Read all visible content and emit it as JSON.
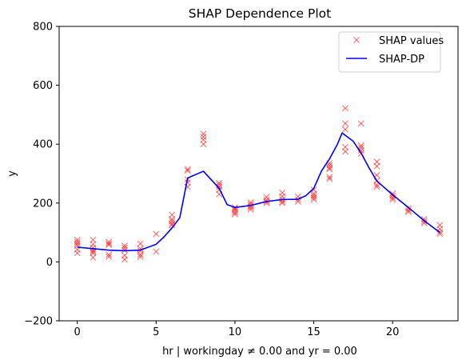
{
  "chart_data": {
    "type": "scatter",
    "title": "SHAP Dependence Plot",
    "xlabel": "hr | workingday ≠ 0.00 and yr = 0.00",
    "ylabel": "y",
    "xlim": [
      -1.15,
      24.15
    ],
    "ylim": [
      -200,
      800
    ],
    "xticks": [
      0,
      5,
      10,
      15,
      20
    ],
    "yticks": [
      -200,
      0,
      200,
      400,
      600,
      800
    ],
    "legend": {
      "placement": "top-right"
    },
    "grid": false,
    "series": [
      {
        "name": "SHAP values",
        "kind": "markers",
        "marker": "x",
        "color": "#ff0000",
        "points": [
          [
            0,
            75
          ],
          [
            0,
            68
          ],
          [
            0,
            62
          ],
          [
            0,
            55
          ],
          [
            0,
            42
          ],
          [
            0,
            30
          ],
          [
            1,
            75
          ],
          [
            1,
            60
          ],
          [
            1,
            48
          ],
          [
            1,
            40
          ],
          [
            1,
            35
          ],
          [
            1,
            30
          ],
          [
            1,
            15
          ],
          [
            2,
            68
          ],
          [
            2,
            62
          ],
          [
            2,
            58
          ],
          [
            2,
            25
          ],
          [
            2,
            18
          ],
          [
            3,
            55
          ],
          [
            3,
            48
          ],
          [
            3,
            40
          ],
          [
            3,
            22
          ],
          [
            3,
            8
          ],
          [
            4,
            62
          ],
          [
            4,
            45
          ],
          [
            4,
            38
          ],
          [
            4,
            25
          ],
          [
            4,
            18
          ],
          [
            5,
            95
          ],
          [
            5,
            35
          ],
          [
            6,
            160
          ],
          [
            6,
            145
          ],
          [
            6,
            138
          ],
          [
            6,
            130
          ],
          [
            6,
            125
          ],
          [
            7,
            315
          ],
          [
            7,
            310
          ],
          [
            7,
            280
          ],
          [
            7,
            270
          ],
          [
            7,
            255
          ],
          [
            8,
            435
          ],
          [
            8,
            425
          ],
          [
            8,
            415
          ],
          [
            8,
            400
          ],
          [
            9,
            268
          ],
          [
            9,
            262
          ],
          [
            9,
            255
          ],
          [
            9,
            245
          ],
          [
            9,
            230
          ],
          [
            10,
            185
          ],
          [
            10,
            180
          ],
          [
            10,
            175
          ],
          [
            10,
            168
          ],
          [
            10,
            162
          ],
          [
            11,
            202
          ],
          [
            11,
            196
          ],
          [
            11,
            190
          ],
          [
            11,
            185
          ],
          [
            11,
            178
          ],
          [
            12,
            220
          ],
          [
            12,
            210
          ],
          [
            12,
            205
          ],
          [
            12,
            200
          ],
          [
            13,
            235
          ],
          [
            13,
            222
          ],
          [
            13,
            212
          ],
          [
            13,
            205
          ],
          [
            13,
            200
          ],
          [
            14,
            222
          ],
          [
            14,
            212
          ],
          [
            14,
            205
          ],
          [
            15,
            245
          ],
          [
            15,
            232
          ],
          [
            15,
            225
          ],
          [
            15,
            218
          ],
          [
            15,
            212
          ],
          [
            16,
            335
          ],
          [
            16,
            328
          ],
          [
            16,
            320
          ],
          [
            16,
            315
          ],
          [
            16,
            288
          ],
          [
            16,
            282
          ],
          [
            17,
            522
          ],
          [
            17,
            470
          ],
          [
            17,
            450
          ],
          [
            17,
            390
          ],
          [
            17,
            375
          ],
          [
            18,
            470
          ],
          [
            18,
            395
          ],
          [
            18,
            388
          ],
          [
            18,
            378
          ],
          [
            18,
            368
          ],
          [
            19,
            340
          ],
          [
            19,
            325
          ],
          [
            19,
            295
          ],
          [
            19,
            275
          ],
          [
            19,
            262
          ],
          [
            19,
            255
          ],
          [
            20,
            232
          ],
          [
            20,
            225
          ],
          [
            20,
            218
          ],
          [
            20,
            212
          ],
          [
            21,
            182
          ],
          [
            21,
            175
          ],
          [
            21,
            170
          ],
          [
            22,
            145
          ],
          [
            22,
            138
          ],
          [
            22,
            132
          ],
          [
            23,
            125
          ],
          [
            23,
            112
          ],
          [
            23,
            102
          ],
          [
            23,
            95
          ]
        ]
      },
      {
        "name": "SHAP-DP",
        "kind": "line",
        "color": "#0000ff",
        "points": [
          [
            0,
            50
          ],
          [
            1,
            45
          ],
          [
            2,
            40
          ],
          [
            3,
            38
          ],
          [
            4,
            40
          ],
          [
            5,
            60
          ],
          [
            5.5,
            85
          ],
          [
            6,
            115
          ],
          [
            6.5,
            150
          ],
          [
            7,
            285
          ],
          [
            8,
            308
          ],
          [
            9,
            250
          ],
          [
            9.5,
            195
          ],
          [
            10,
            185
          ],
          [
            11,
            192
          ],
          [
            12,
            205
          ],
          [
            13,
            212
          ],
          [
            14,
            213
          ],
          [
            14.5,
            225
          ],
          [
            15,
            250
          ],
          [
            15.5,
            310
          ],
          [
            16,
            350
          ],
          [
            16.5,
            400
          ],
          [
            16.8,
            438
          ],
          [
            17.5,
            410
          ],
          [
            18,
            370
          ],
          [
            18.5,
            320
          ],
          [
            19,
            275
          ],
          [
            20,
            228
          ],
          [
            21,
            185
          ],
          [
            22,
            140
          ],
          [
            23,
            100
          ]
        ]
      }
    ]
  }
}
